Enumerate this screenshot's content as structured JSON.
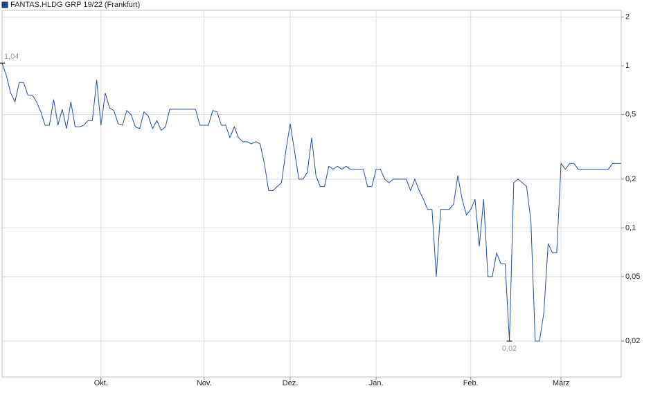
{
  "chart_data": {
    "type": "line",
    "series": [
      {
        "name": "FANTAS.HLDG GRP 19/22 (Frankfurt)",
        "color": "#1f4e9c",
        "values": [
          1.04,
          0.87,
          0.68,
          0.6,
          0.79,
          0.79,
          0.66,
          0.66,
          0.6,
          0.52,
          0.43,
          0.43,
          0.62,
          0.43,
          0.54,
          0.41,
          0.6,
          0.42,
          0.42,
          0.43,
          0.46,
          0.46,
          0.82,
          0.43,
          0.68,
          0.55,
          0.53,
          0.44,
          0.43,
          0.53,
          0.5,
          0.42,
          0.41,
          0.52,
          0.49,
          0.41,
          0.46,
          0.4,
          0.42,
          0.54,
          0.54,
          0.54,
          0.54,
          0.54,
          0.54,
          0.54,
          0.43,
          0.43,
          0.43,
          0.53,
          0.52,
          0.43,
          0.43,
          0.36,
          0.42,
          0.36,
          0.34,
          0.34,
          0.33,
          0.34,
          0.33,
          0.25,
          0.17,
          0.17,
          0.18,
          0.19,
          0.3,
          0.44,
          0.3,
          0.2,
          0.2,
          0.22,
          0.36,
          0.21,
          0.18,
          0.18,
          0.24,
          0.23,
          0.24,
          0.23,
          0.24,
          0.23,
          0.23,
          0.23,
          0.23,
          0.18,
          0.18,
          0.23,
          0.23,
          0.2,
          0.19,
          0.2,
          0.2,
          0.2,
          0.2,
          0.17,
          0.2,
          0.17,
          0.15,
          0.13,
          0.13,
          0.05,
          0.13,
          0.13,
          0.13,
          0.14,
          0.21,
          0.15,
          0.12,
          0.13,
          0.15,
          0.077,
          0.15,
          0.05,
          0.05,
          0.07,
          0.06,
          0.06,
          0.02,
          0.19,
          0.2,
          0.19,
          0.18,
          0.11,
          0.02,
          0.02,
          0.03,
          0.08,
          0.07,
          0.07,
          0.25,
          0.23,
          0.25,
          0.25,
          0.23,
          0.23,
          0.23,
          0.23,
          0.23,
          0.23,
          0.23,
          0.23,
          0.25,
          0.25,
          0.25
        ]
      }
    ],
    "categories": [
      null,
      null,
      null,
      null,
      null,
      null,
      null,
      null,
      null,
      null,
      null,
      null,
      null,
      null,
      null,
      null,
      null,
      null,
      null,
      null,
      null,
      null,
      null,
      "Okt.",
      null,
      null,
      null,
      null,
      null,
      null,
      null,
      null,
      null,
      null,
      null,
      null,
      null,
      null,
      null,
      null,
      null,
      null,
      null,
      null,
      null,
      null,
      null,
      "Nov.",
      null,
      null,
      null,
      null,
      null,
      null,
      null,
      null,
      null,
      null,
      null,
      null,
      null,
      null,
      null,
      null,
      null,
      null,
      null,
      "Dez.",
      null,
      null,
      null,
      null,
      null,
      null,
      null,
      null,
      null,
      null,
      null,
      null,
      null,
      null,
      null,
      null,
      null,
      null,
      null,
      "Jan.",
      null,
      null,
      null,
      null,
      null,
      null,
      null,
      null,
      null,
      null,
      null,
      null,
      null,
      null,
      null,
      null,
      null,
      null,
      null,
      null,
      null,
      "Feb.",
      null,
      null,
      null,
      null,
      null,
      null,
      null,
      null,
      null,
      null,
      null,
      null,
      null,
      null,
      null,
      null,
      null,
      null,
      null,
      null,
      "März",
      null,
      null,
      null,
      null,
      null,
      null,
      null,
      null,
      null,
      null,
      null,
      null,
      null,
      null
    ],
    "ylog": true,
    "ylim": [
      0.012,
      2.2
    ],
    "yticks": [
      {
        "value": 0.02,
        "label": "0,02"
      },
      {
        "value": 0.05,
        "label": "0,05"
      },
      {
        "value": 0.1,
        "label": "0,1"
      },
      {
        "value": 0.2,
        "label": "0,2"
      },
      {
        "value": 0.5,
        "label": "0,5"
      },
      1,
      2
    ],
    "grid": true,
    "annotations": [
      {
        "value": 1.04,
        "label": "1,04"
      },
      {
        "value": 0.02,
        "label": "0,02"
      }
    ]
  }
}
